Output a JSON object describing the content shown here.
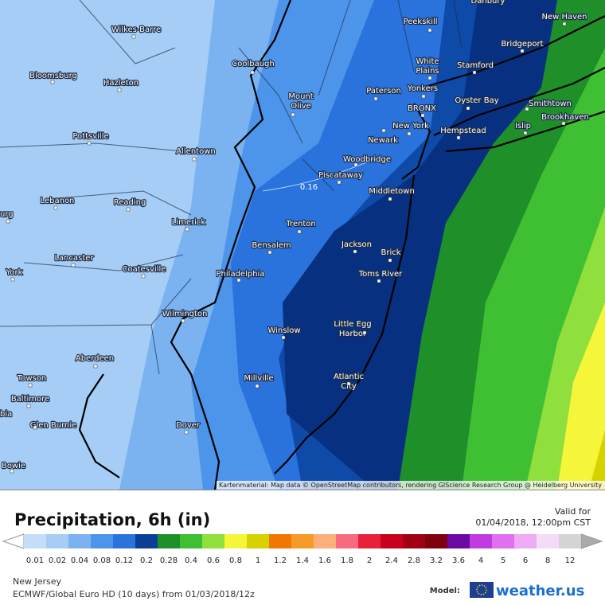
{
  "map": {
    "cities": [
      {
        "label": [
          "Danbury"
        ]
      },
      {
        "label": [
          "Wilkes-Barre"
        ]
      },
      {
        "label": [
          "Bloomsburg"
        ]
      },
      {
        "label": [
          "Hazleton"
        ]
      },
      {
        "label": [
          "Pottsville"
        ]
      },
      {
        "label": [
          "Allentown"
        ]
      },
      {
        "label": [
          "urg"
        ]
      },
      {
        "label": [
          "Lebanon"
        ]
      },
      {
        "label": [
          "Reading"
        ]
      },
      {
        "label": [
          "Limerick"
        ]
      },
      {
        "label": [
          "Lancaster"
        ]
      },
      {
        "label": [
          "Coatesville"
        ]
      },
      {
        "label": [
          "York"
        ]
      },
      {
        "label": [
          "Philadelphia"
        ]
      },
      {
        "label": [
          "Wilmington"
        ]
      },
      {
        "label": [
          "Aberdeen"
        ]
      },
      {
        "label": [
          "Towson"
        ]
      },
      {
        "label": [
          "Baltimore"
        ]
      },
      {
        "label": [
          "bia"
        ]
      },
      {
        "label": [
          "Glen Burnie"
        ]
      },
      {
        "label": [
          "Bowie"
        ]
      },
      {
        "label": [
          "Dover"
        ]
      },
      {
        "label": [
          "Millville"
        ]
      },
      {
        "label": [
          "Winslow"
        ]
      },
      {
        "label": [
          "Bensalem"
        ]
      },
      {
        "label": [
          "Trenton"
        ]
      },
      {
        "label": [
          "Jackson"
        ]
      },
      {
        "label": [
          "Brick"
        ]
      },
      {
        "label": [
          "Toms River"
        ]
      },
      {
        "label": [
          "Little Egg",
          "Harbor"
        ]
      },
      {
        "label": [
          "Atlantic",
          "City"
        ]
      },
      {
        "label": [
          "Middletown"
        ]
      },
      {
        "label": [
          "Piscataway"
        ]
      },
      {
        "label": [
          "Woodbridge"
        ]
      },
      {
        "label": [
          "Newark"
        ]
      },
      {
        "label": [
          "New York"
        ]
      },
      {
        "label": [
          "Paterson"
        ]
      },
      {
        "label": [
          "Yonkers"
        ]
      },
      {
        "label": [
          "BRONX"
        ]
      },
      {
        "label": [
          "White",
          "Plains"
        ]
      },
      {
        "label": [
          "Peekskill"
        ]
      },
      {
        "label": [
          "Coolbaugh"
        ]
      },
      {
        "label": [
          "Mount",
          "Olive"
        ]
      },
      {
        "label": [
          "Stamford"
        ]
      },
      {
        "label": [
          "Oyster Bay"
        ]
      },
      {
        "label": [
          "Hempstead"
        ]
      },
      {
        "label": [
          "Bridgeport"
        ]
      },
      {
        "label": [
          "New Haven"
        ]
      },
      {
        "label": [
          "Smithtown"
        ]
      },
      {
        "label": [
          "Brookhaven"
        ]
      },
      {
        "label": [
          "Islip"
        ]
      }
    ],
    "contour_label": "0.16",
    "attribution": "Kartenmaterial: Map data © OpenStreetMap contributors, rendering GIScience Research Group @ Heidelberg University"
  },
  "header": {
    "title": "Precipitation, 6h (in)",
    "valid_label": "Valid for",
    "valid_time": "01/04/2018, 12:00pm CST"
  },
  "legend": {
    "values": [
      0.01,
      0.02,
      0.04,
      0.08,
      0.12,
      0.2,
      0.28,
      0.4,
      0.6,
      0.8,
      1,
      1.2,
      1.4,
      1.6,
      1.8,
      2,
      2.4,
      2.8,
      3.2,
      3.6,
      4,
      5,
      6,
      8,
      12
    ],
    "colors": [
      "#c4def9",
      "#a6cdf5",
      "#7ab3f0",
      "#4c95ea",
      "#2a72dc",
      "#0b3f96",
      "#1f8f2a",
      "#3fbf32",
      "#8fe03c",
      "#f5f53a",
      "#d6d200",
      "#f07800",
      "#f89a2a",
      "#fbb07a",
      "#f76a80",
      "#e8203a",
      "#c8001e",
      "#a00014",
      "#80000e",
      "#6a0aa0",
      "#c03ce0",
      "#e070f0",
      "#eeaaf4",
      "#f4dcf8",
      "#d4d4d4"
    ]
  },
  "footer": {
    "region": "New Jersey",
    "model_run": "ECMWF/Global Euro HD (10 days) from 01/03/2018/12z",
    "model_label": "Model:",
    "brand": "weather.us"
  }
}
